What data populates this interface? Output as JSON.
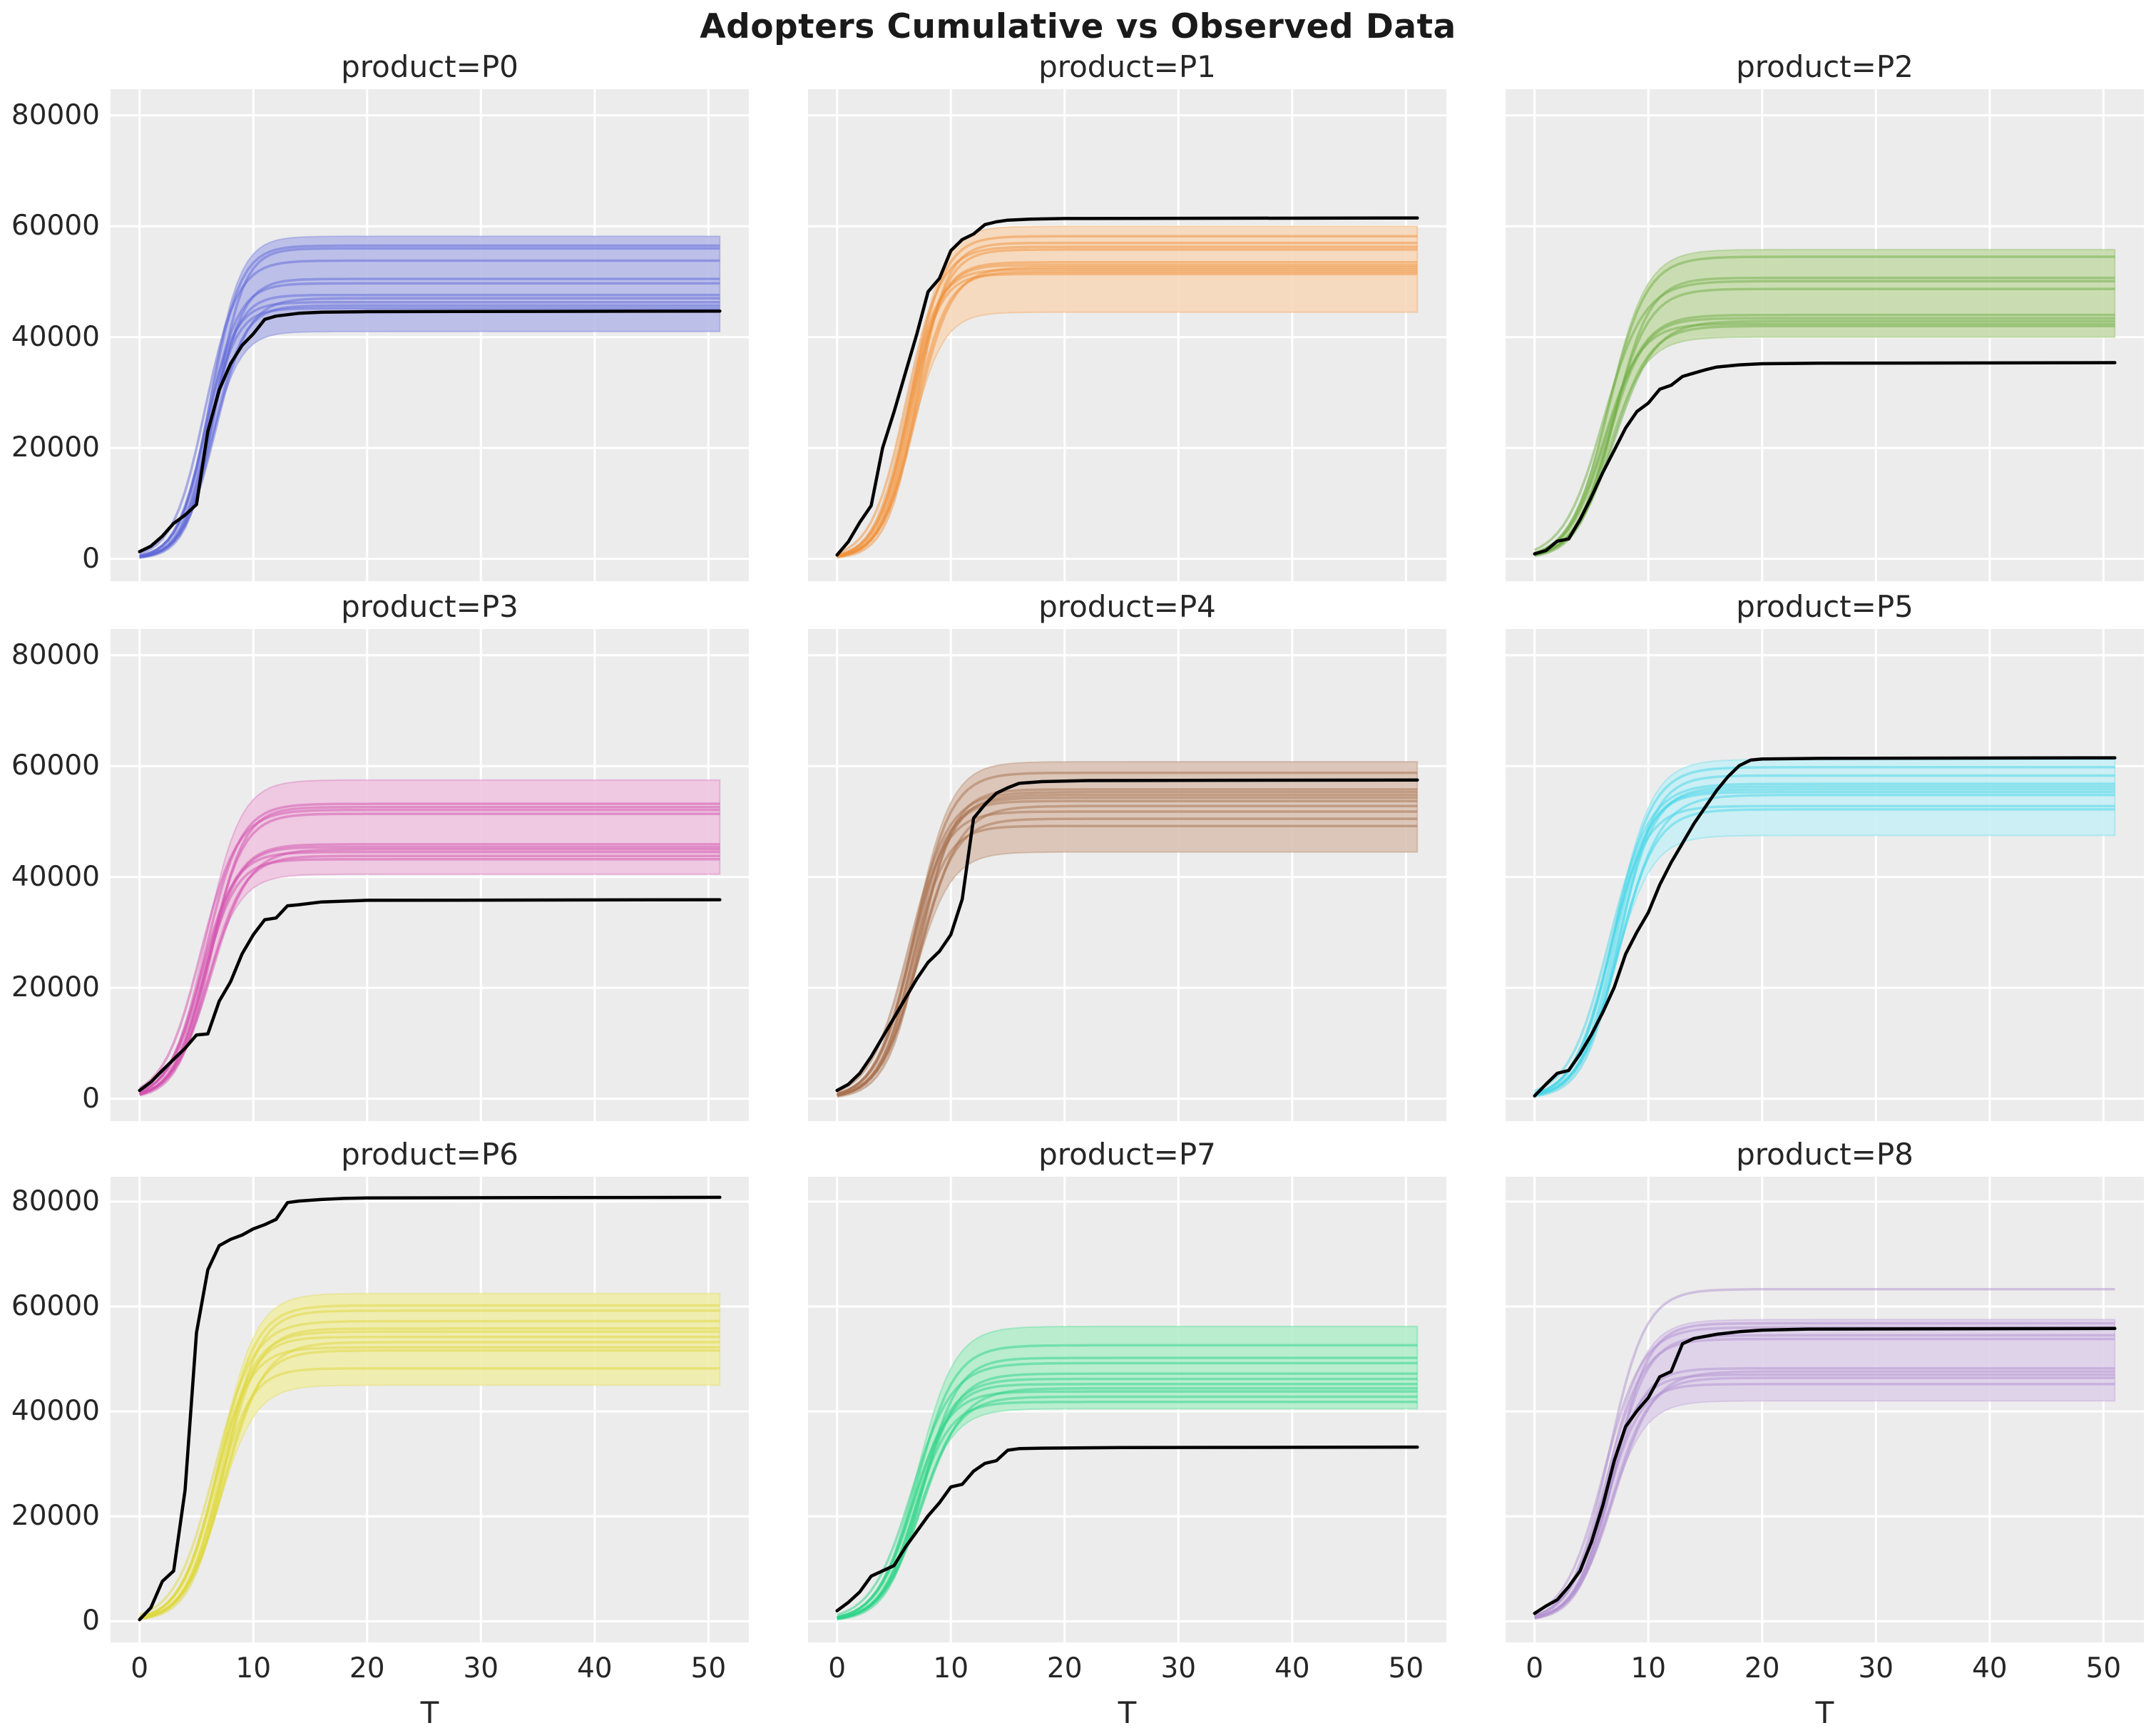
{
  "chart_data": {
    "type": "line",
    "title": "Adopters Cumulative vs Observed Data",
    "xlabel": "T",
    "x_ticks": [
      0,
      10,
      20,
      30,
      40,
      50
    ],
    "y_ticks": [
      0,
      20000,
      40000,
      60000,
      80000
    ],
    "xlim": [
      -2.55,
      53.55
    ],
    "ylim": [
      -4035,
      84735
    ],
    "x_range_data": [
      0,
      51
    ],
    "legend": "none",
    "grid": "on",
    "style": {
      "axes_background": "#ececec",
      "grid_color": "#ffffff",
      "observed_color": "#000000",
      "tick_color": "#262626"
    },
    "facets": [
      {
        "product": "P0",
        "title": "product=P0",
        "line_color": "#5f68d8",
        "fill_color": "#b7bbe9",
        "band": {
          "lower_plateau": 41000,
          "upper_plateau": 58200,
          "t0": 6.2,
          "k": 0.75
        },
        "sample_plateaus": [
          56500,
          56000,
          53800,
          50500,
          49700,
          47600,
          47000,
          46300,
          45700,
          45200
        ],
        "observed_plateau": 44700,
        "observed": [
          [
            0,
            1300
          ],
          [
            1,
            2300
          ],
          [
            2,
            4100
          ],
          [
            3,
            6400
          ],
          [
            4,
            7900
          ],
          [
            5,
            9800
          ],
          [
            6,
            23000
          ],
          [
            7,
            30500
          ],
          [
            8,
            35200
          ],
          [
            9,
            38500
          ],
          [
            10,
            40600
          ],
          [
            11,
            43200
          ],
          [
            12,
            43800
          ],
          [
            14,
            44300
          ],
          [
            16,
            44500
          ],
          [
            20,
            44600
          ],
          [
            51,
            44700
          ]
        ]
      },
      {
        "product": "P1",
        "title": "product=P1",
        "line_color": "#f0913b",
        "fill_color": "#f7d8ba",
        "band": {
          "lower_plateau": 44500,
          "upper_plateau": 60000,
          "t0": 6.5,
          "k": 0.7
        },
        "sample_plateaus": [
          58200,
          57000,
          56300,
          55800,
          53500,
          53000,
          52600,
          52200,
          51800,
          51400
        ],
        "observed_plateau": 61500,
        "observed": [
          [
            0,
            700
          ],
          [
            1,
            3100
          ],
          [
            2,
            6600
          ],
          [
            3,
            9600
          ],
          [
            4,
            20000
          ],
          [
            5,
            26500
          ],
          [
            6,
            33500
          ],
          [
            7,
            40500
          ],
          [
            8,
            48200
          ],
          [
            9,
            50600
          ],
          [
            10,
            55600
          ],
          [
            11,
            57600
          ],
          [
            12,
            58600
          ],
          [
            13,
            60300
          ],
          [
            14,
            60800
          ],
          [
            15,
            61100
          ],
          [
            17,
            61300
          ],
          [
            20,
            61400
          ],
          [
            51,
            61500
          ]
        ]
      },
      {
        "product": "P2",
        "title": "product=P2",
        "line_color": "#6fae46",
        "fill_color": "#c6dbac",
        "band": {
          "lower_plateau": 40000,
          "upper_plateau": 55800,
          "t0": 6.5,
          "k": 0.6
        },
        "sample_plateaus": [
          54500,
          50700,
          50100,
          48700,
          44000,
          43400,
          42900,
          42400,
          42000
        ],
        "observed_plateau": 35400,
        "observed": [
          [
            0,
            900
          ],
          [
            1,
            1500
          ],
          [
            2,
            3200
          ],
          [
            3,
            3600
          ],
          [
            4,
            7100
          ],
          [
            5,
            11200
          ],
          [
            6,
            15600
          ],
          [
            7,
            19600
          ],
          [
            8,
            23600
          ],
          [
            9,
            26600
          ],
          [
            10,
            28100
          ],
          [
            11,
            30600
          ],
          [
            12,
            31300
          ],
          [
            13,
            32900
          ],
          [
            14,
            33500
          ],
          [
            15,
            34100
          ],
          [
            16,
            34600
          ],
          [
            18,
            35000
          ],
          [
            20,
            35200
          ],
          [
            25,
            35300
          ],
          [
            51,
            35400
          ]
        ]
      },
      {
        "product": "P3",
        "title": "product=P3",
        "line_color": "#d14fae",
        "fill_color": "#eec5e0",
        "band": {
          "lower_plateau": 40500,
          "upper_plateau": 57500,
          "t0": 5.8,
          "k": 0.65
        },
        "sample_plateaus": [
          53200,
          52600,
          52100,
          51400,
          45900,
          45400,
          45000,
          44500,
          43800,
          43200
        ],
        "observed_plateau": 35900,
        "observed": [
          [
            0,
            1500
          ],
          [
            1,
            3000
          ],
          [
            2,
            5100
          ],
          [
            3,
            7100
          ],
          [
            4,
            9100
          ],
          [
            5,
            11500
          ],
          [
            6,
            11700
          ],
          [
            7,
            17600
          ],
          [
            8,
            21100
          ],
          [
            9,
            26100
          ],
          [
            10,
            29600
          ],
          [
            11,
            32300
          ],
          [
            12,
            32600
          ],
          [
            13,
            34800
          ],
          [
            14,
            35000
          ],
          [
            16,
            35500
          ],
          [
            20,
            35800
          ],
          [
            51,
            35900
          ]
        ]
      },
      {
        "product": "P4",
        "title": "product=P4",
        "line_color": "#a86f4e",
        "fill_color": "#d9c2b4",
        "band": {
          "lower_plateau": 44500,
          "upper_plateau": 60800,
          "t0": 6.8,
          "k": 0.62
        },
        "sample_plateaus": [
          58800,
          55800,
          55300,
          54800,
          54300,
          53700,
          52800,
          51800,
          50500,
          49200
        ],
        "observed_plateau": 57500,
        "observed": [
          [
            0,
            1500
          ],
          [
            1,
            2600
          ],
          [
            2,
            4600
          ],
          [
            3,
            7600
          ],
          [
            4,
            11100
          ],
          [
            5,
            14600
          ],
          [
            6,
            18100
          ],
          [
            7,
            21600
          ],
          [
            8,
            24600
          ],
          [
            9,
            26600
          ],
          [
            10,
            29600
          ],
          [
            11,
            36000
          ],
          [
            12,
            50600
          ],
          [
            13,
            53100
          ],
          [
            14,
            55100
          ],
          [
            15,
            56100
          ],
          [
            16,
            56900
          ],
          [
            18,
            57200
          ],
          [
            22,
            57400
          ],
          [
            51,
            57500
          ]
        ]
      },
      {
        "product": "P5",
        "title": "product=P5",
        "line_color": "#45d6e8",
        "fill_color": "#c8f0f5",
        "band": {
          "lower_plateau": 47500,
          "upper_plateau": 61200,
          "t0": 7.0,
          "k": 0.6
        },
        "sample_plateaus": [
          59800,
          58300,
          56800,
          56300,
          55800,
          55300,
          54800,
          52800,
          52200
        ],
        "observed_plateau": 61500,
        "observed": [
          [
            0,
            500
          ],
          [
            1,
            2600
          ],
          [
            2,
            4600
          ],
          [
            3,
            5100
          ],
          [
            4,
            8100
          ],
          [
            5,
            11600
          ],
          [
            6,
            15600
          ],
          [
            7,
            20100
          ],
          [
            8,
            26100
          ],
          [
            9,
            30100
          ],
          [
            10,
            33600
          ],
          [
            11,
            38600
          ],
          [
            12,
            42600
          ],
          [
            13,
            46100
          ],
          [
            14,
            49600
          ],
          [
            15,
            52600
          ],
          [
            16,
            55600
          ],
          [
            17,
            58100
          ],
          [
            18,
            60100
          ],
          [
            19,
            61100
          ],
          [
            20,
            61300
          ],
          [
            25,
            61400
          ],
          [
            51,
            61500
          ]
        ]
      },
      {
        "product": "P6",
        "title": "product=P6",
        "line_color": "#ded73e",
        "fill_color": "#f1edab",
        "band": {
          "lower_plateau": 45000,
          "upper_plateau": 62500,
          "t0": 7.0,
          "k": 0.62
        },
        "sample_plateaus": [
          60200,
          59200,
          57200,
          55800,
          55200,
          54200,
          53200,
          52200,
          51600,
          48200
        ],
        "observed_plateau": 80800,
        "observed": [
          [
            0,
            300
          ],
          [
            1,
            2600
          ],
          [
            2,
            7600
          ],
          [
            3,
            9600
          ],
          [
            4,
            25000
          ],
          [
            5,
            55000
          ],
          [
            6,
            67000
          ],
          [
            7,
            71600
          ],
          [
            8,
            72800
          ],
          [
            9,
            73600
          ],
          [
            10,
            74800
          ],
          [
            11,
            75600
          ],
          [
            12,
            76600
          ],
          [
            13,
            79800
          ],
          [
            14,
            80100
          ],
          [
            16,
            80400
          ],
          [
            18,
            80600
          ],
          [
            20,
            80700
          ],
          [
            51,
            80800
          ]
        ]
      },
      {
        "product": "P7",
        "title": "product=P7",
        "line_color": "#2ed487",
        "fill_color": "#b4edcb",
        "band": {
          "lower_plateau": 40500,
          "upper_plateau": 56200,
          "t0": 7.0,
          "k": 0.6
        },
        "sample_plateaus": [
          52600,
          50200,
          49200,
          47200,
          46200,
          45200,
          44400,
          43800,
          42800,
          41800
        ],
        "observed_plateau": 33200,
        "observed": [
          [
            0,
            2000
          ],
          [
            1,
            3600
          ],
          [
            2,
            5600
          ],
          [
            3,
            8600
          ],
          [
            4,
            9600
          ],
          [
            5,
            10600
          ],
          [
            6,
            14100
          ],
          [
            7,
            17100
          ],
          [
            8,
            20100
          ],
          [
            9,
            22600
          ],
          [
            10,
            25600
          ],
          [
            11,
            26100
          ],
          [
            12,
            28600
          ],
          [
            13,
            30100
          ],
          [
            14,
            30600
          ],
          [
            15,
            32600
          ],
          [
            16,
            32900
          ],
          [
            18,
            33000
          ],
          [
            25,
            33100
          ],
          [
            51,
            33200
          ]
        ]
      },
      {
        "product": "P8",
        "title": "product=P8",
        "line_color": "#b292cf",
        "fill_color": "#ded0ea",
        "band": {
          "lower_plateau": 42000,
          "upper_plateau": 57500,
          "t0": 6.5,
          "k": 0.62
        },
        "sample_plateaus": [
          63300,
          56800,
          56000,
          54500,
          53800,
          48200,
          47600,
          47000,
          46400,
          45200
        ],
        "observed_plateau": 55800,
        "observed": [
          [
            0,
            1500
          ],
          [
            1,
            2900
          ],
          [
            2,
            4100
          ],
          [
            3,
            6600
          ],
          [
            4,
            9600
          ],
          [
            5,
            15100
          ],
          [
            6,
            22100
          ],
          [
            7,
            30600
          ],
          [
            8,
            37100
          ],
          [
            9,
            40100
          ],
          [
            10,
            42600
          ],
          [
            11,
            46600
          ],
          [
            12,
            47600
          ],
          [
            13,
            52900
          ],
          [
            14,
            53900
          ],
          [
            15,
            54300
          ],
          [
            16,
            54700
          ],
          [
            18,
            55200
          ],
          [
            20,
            55500
          ],
          [
            24,
            55700
          ],
          [
            51,
            55800
          ]
        ]
      }
    ]
  }
}
